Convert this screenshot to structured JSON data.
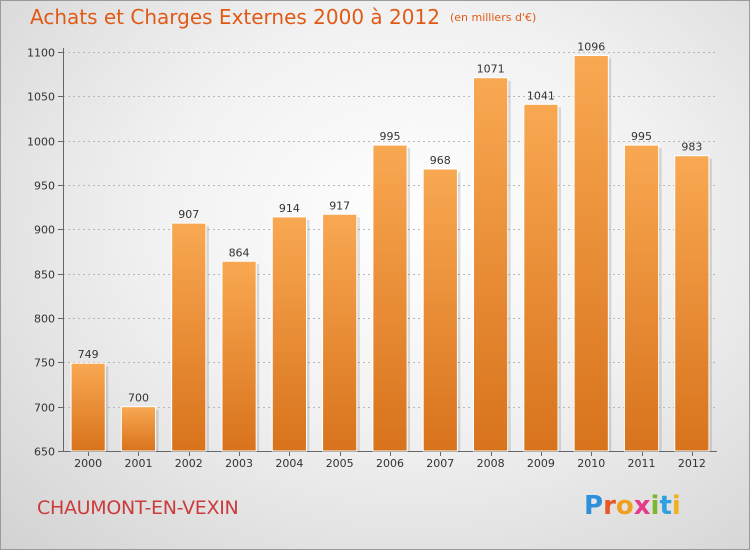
{
  "header": {
    "title": "Achats et Charges Externes 2000 à 2012",
    "unit": "(en milliers d'€)"
  },
  "footer": {
    "commune": "CHAUMONT-EN-VEXIN",
    "logo": "Proxiti"
  },
  "colors": {
    "title": "#e05a16",
    "commune": "#cc3b3b",
    "bar_light": "#f7a552",
    "bar_dark": "#d9741c"
  },
  "chart_data": {
    "type": "bar",
    "title": "Achats et Charges Externes 2000 à 2012",
    "subtitle": "(en milliers d'€)",
    "categories": [
      "2000",
      "2001",
      "2002",
      "2003",
      "2004",
      "2005",
      "2006",
      "2007",
      "2008",
      "2009",
      "2010",
      "2011",
      "2012"
    ],
    "values": [
      749,
      700,
      907,
      864,
      914,
      917,
      995,
      968,
      1071,
      1041,
      1096,
      995,
      983
    ],
    "data_labels": [
      "749",
      "700",
      "907",
      "864",
      "914",
      "917",
      "995",
      "968",
      "1071",
      "1041",
      "1096",
      "995",
      "983"
    ],
    "ylim": [
      650,
      1100
    ],
    "yticks": [
      650,
      700,
      750,
      800,
      850,
      900,
      950,
      1000,
      1050,
      1100
    ],
    "xlabel": "",
    "ylabel": "",
    "grid": true,
    "grid_style": "dashed horizontal"
  }
}
